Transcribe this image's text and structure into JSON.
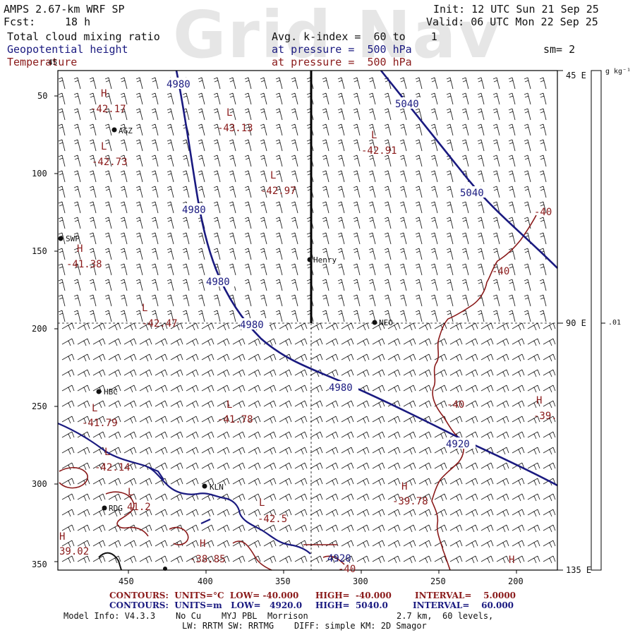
{
  "header": {
    "model": "AMPS 2.67-km WRF SP",
    "fcst_label": "Fcst:",
    "fcst_value": "18 h",
    "init": "Init: 12 UTC Sun 21 Sep 25",
    "valid": "Valid: 06 UTC Mon 22 Sep 25",
    "fields": [
      {
        "name": "Total cloud mixing ratio",
        "detail": "Avg. k-index =  60 to    1",
        "color": "#111111"
      },
      {
        "name": "Geopotential height",
        "detail": "at pressure =  500 hPa",
        "color": "#1a1a80"
      },
      {
        "name": "Temperature",
        "detail": "at pressure =  500 hPa",
        "color": "#8a1a1a"
      }
    ],
    "smoothing": "sm= 2"
  },
  "watermark": "Grid Nav",
  "axes": {
    "x_ticks": [
      "450",
      "400",
      "350",
      "300",
      "250",
      "200"
    ],
    "y_ticks": [
      "50",
      "100",
      "150",
      "200",
      "250",
      "300",
      "350"
    ],
    "right_labels": [
      "45 E",
      "90 E",
      "135 E"
    ],
    "colorbar_unit": "g kg⁻¹",
    "colorbar_tick": ".01",
    "corner_label": "45"
  },
  "stations": [
    {
      "name": "AGZ"
    },
    {
      "name": "SWP"
    },
    {
      "name": "Henry"
    },
    {
      "name": "NEO"
    },
    {
      "name": "HBC"
    },
    {
      "name": "KLN"
    },
    {
      "name": "RDG"
    }
  ],
  "height_labels": [
    "4980",
    "4980",
    "4980",
    "4980",
    "4980",
    "4920",
    "4920",
    "5040",
    "5040"
  ],
  "temp_contour_labels": [
    "-40",
    "-40",
    "-40",
    "-40"
  ],
  "extrema": [
    {
      "type": "H",
      "value": "-42.17"
    },
    {
      "type": "L",
      "value": "-43.13"
    },
    {
      "type": "L",
      "value": "-42.73"
    },
    {
      "type": "L",
      "value": "-42.91"
    },
    {
      "type": "L",
      "value": "-42.97"
    },
    {
      "type": "H",
      "value": "-41.38"
    },
    {
      "type": "L",
      "value": "-42.47"
    },
    {
      "type": "L",
      "value": "-41.79"
    },
    {
      "type": "L",
      "value": "-41.78"
    },
    {
      "type": "H",
      "value": "-39."
    },
    {
      "type": "L",
      "value": "-42.14"
    },
    {
      "type": "L",
      "value": "41.2"
    },
    {
      "type": "L",
      "value": "-42.5"
    },
    {
      "type": "H",
      "value": "-39.78"
    },
    {
      "type": "H",
      "value": "-38.85"
    },
    {
      "type": "H",
      "value": "39.02"
    },
    {
      "type": "H",
      "value": "-40"
    },
    {
      "type": "H",
      "value": ""
    }
  ],
  "footer": {
    "temp_line": {
      "a": "CONTOURS:  UNITS=°C  LOW= -40.000",
      "b": "HIGH=  -40.000",
      "c": "INTERVAL=    5.0000"
    },
    "height_line": {
      "a": "CONTOURS:  UNITS=m   LOW=   4920.0",
      "b": "HIGH=  5040.0",
      "c": "INTERVAL=    60.000"
    },
    "model_info": "Model Info: V4.3.3    No Cu    MYJ PBL  Morrison",
    "grid_info": "2.7 km,  60 levels,",
    "physics_info": "LW: RRTM SW: RRTMG    DIFF: simple KM: 2D Smagor"
  },
  "colors": {
    "height": "#1a1a80",
    "temperature": "#8a1a1a",
    "coast": "#1a1a80",
    "grid": "#000000"
  }
}
